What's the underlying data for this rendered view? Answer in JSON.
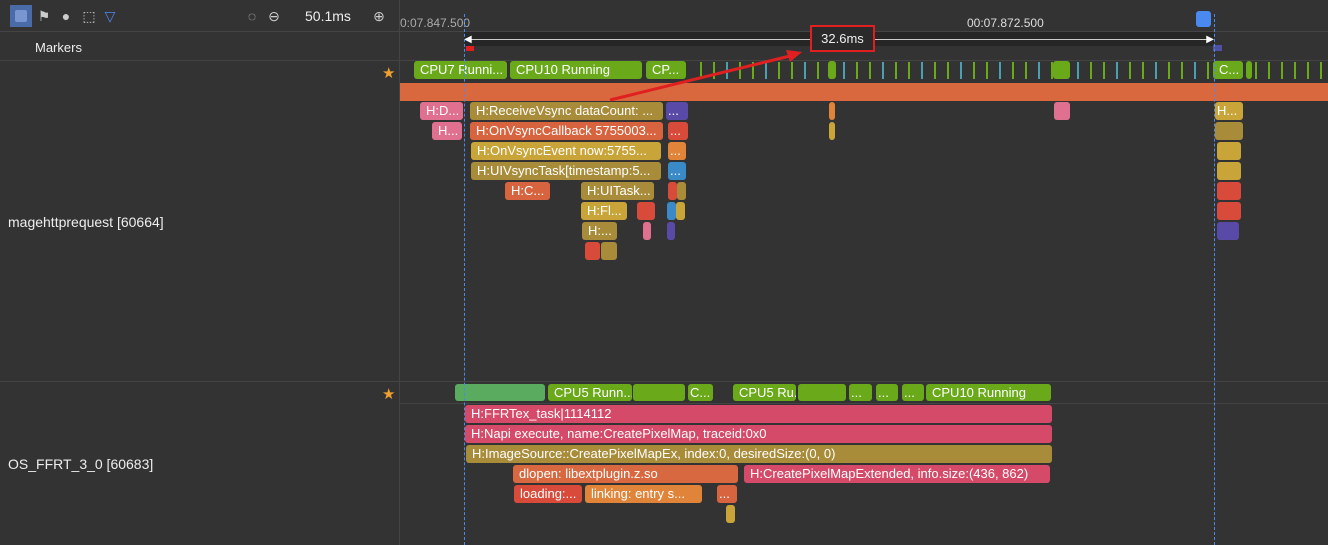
{
  "toolbar": {
    "zoom_value": "50.1ms",
    "icons": [
      "select-icon",
      "flag-icon",
      "target-icon",
      "screenshot-icon",
      "filter-icon",
      "reset-icon",
      "zoom-out-icon",
      "zoom-in-icon"
    ]
  },
  "timeline": {
    "start_label": "0:07.847.500",
    "mid_label": "00:07.872.500",
    "measure_label": "32.6ms"
  },
  "markers": {
    "label": "Markers"
  },
  "threads": [
    {
      "name": "magehttprequest [60664]",
      "cpu": [
        "CPU7 Runni...",
        "CPU10 Running",
        "CP...",
        "C..."
      ],
      "slices": [
        "H:D...",
        "H:ReceiveVsync dataCount: ...",
        "...",
        "H...",
        "H:OnVsyncCallback 5755003...",
        "...",
        "H:OnVsyncEvent now:5755...",
        "...",
        "H:UIVsyncTask[timestamp:5...",
        "...",
        "H:C...",
        "H:UITask...",
        "H:Fl...",
        "H:...",
        "H...",
        ""
      ]
    },
    {
      "name": "OS_FFRT_3_0 [60683]",
      "cpu": [
        "CPU5 Runn...",
        "C...",
        "CPU5 Ru...",
        "...",
        "...",
        "...",
        "CPU10 Running"
      ],
      "slices": [
        "H:FFRTex_task|1114112",
        "H:Napi execute, name:CreatePixelMap, traceid:0x0",
        "H:ImageSource::CreatePixelMapEx, index:0, desiredSize:(0, 0)",
        "dlopen:  libextplugin.z.so",
        "H:CreatePixelMapExtended, info.size:(436, 862)",
        "loading:...",
        "linking: entry s...",
        "..."
      ]
    }
  ],
  "colors": {
    "accent": "#4a8af0",
    "cpu": "#6aaa1a",
    "annotation": "#e02020"
  }
}
